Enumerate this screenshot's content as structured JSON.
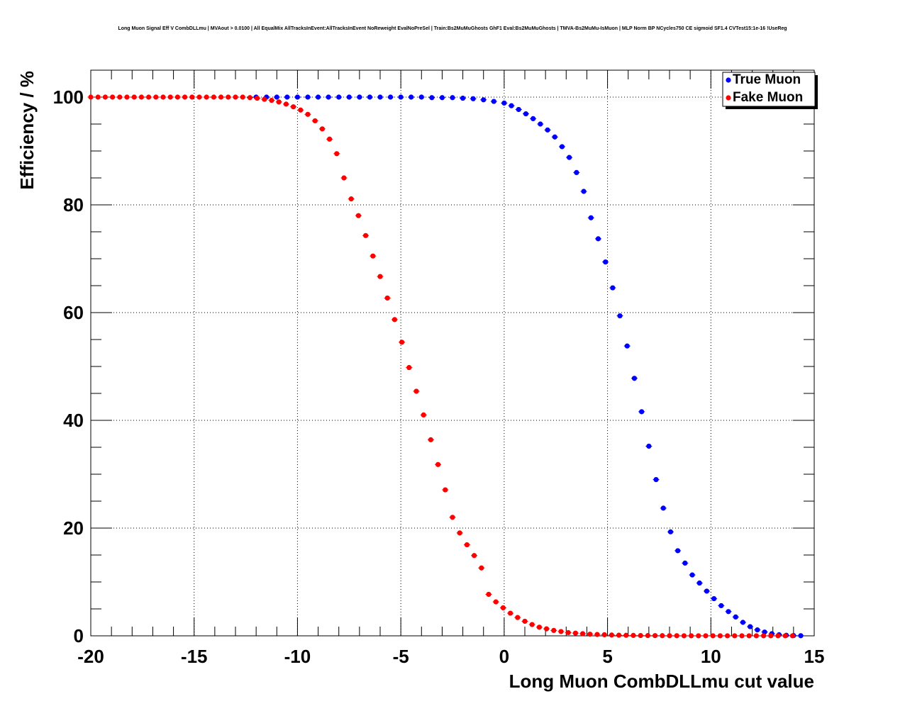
{
  "chart_data": {
    "type": "scatter",
    "title": "Long Muon Signal Eff V CombDLLmu | MVAout > 0.0100 | All EqualMix AllTracksInEvent:AllTracksInEvent NoReweight EvalNoPreSel | Train:Bs2MuMuGhosts GhF1 Eval:Bs2MuMuGhosts | TMVA-Bs2MuMu-IsMuon | MLP Norm BP NCycles750 CE sigmoid SF1.4 CVTest15:1e-16 !UseReg",
    "xlabel": "Long Muon CombDLLmu cut value",
    "ylabel": "Efficiency / %",
    "xlim": [
      -20,
      15
    ],
    "ylim": [
      0,
      105
    ],
    "x_ticks": [
      "-20",
      "-15",
      "-10",
      "-5",
      "0",
      "5",
      "10",
      "15"
    ],
    "y_ticks": [
      "0",
      "20",
      "40",
      "60",
      "80",
      "100"
    ],
    "grid": true,
    "legend_position": "top-right",
    "colors": {
      "True Muon": "#0000ff",
      "Fake Muon": "#ff0000"
    },
    "series": [
      {
        "name": "True Muon",
        "points": [
          [
            -12,
            100
          ],
          [
            -11.5,
            100
          ],
          [
            -11,
            100
          ],
          [
            -10.5,
            100
          ],
          [
            -10,
            100
          ],
          [
            -9.5,
            100
          ],
          [
            -9,
            100
          ],
          [
            -8.5,
            100
          ],
          [
            -8,
            100
          ],
          [
            -7.5,
            100
          ],
          [
            -7,
            100
          ],
          [
            -6.5,
            100
          ],
          [
            -6,
            100
          ],
          [
            -5.5,
            100
          ],
          [
            -5,
            100
          ],
          [
            -4.5,
            100
          ],
          [
            -4,
            100
          ],
          [
            -3.5,
            99.9
          ],
          [
            -3,
            99.9
          ],
          [
            -2.5,
            99.9
          ],
          [
            -2,
            99.8
          ],
          [
            -1.5,
            99.7
          ],
          [
            -1,
            99.5
          ],
          [
            -0.5,
            99.2
          ],
          [
            0,
            98.9
          ],
          [
            0.35,
            98.4
          ],
          [
            0.7,
            97.7
          ],
          [
            1.05,
            96.9
          ],
          [
            1.4,
            96.0
          ],
          [
            1.75,
            95.0
          ],
          [
            2.1,
            93.9
          ],
          [
            2.45,
            92.6
          ],
          [
            2.8,
            90.8
          ],
          [
            3.15,
            88.8
          ],
          [
            3.5,
            86.0
          ],
          [
            3.85,
            82.5
          ],
          [
            4.2,
            77.6
          ],
          [
            4.55,
            73.7
          ],
          [
            4.9,
            69.4
          ],
          [
            5.25,
            64.6
          ],
          [
            5.6,
            59.4
          ],
          [
            5.95,
            53.8
          ],
          [
            6.3,
            47.8
          ],
          [
            6.65,
            41.6
          ],
          [
            7.0,
            35.2
          ],
          [
            7.35,
            29.0
          ],
          [
            7.7,
            23.7
          ],
          [
            8.05,
            19.3
          ],
          [
            8.4,
            15.8
          ],
          [
            8.75,
            13.5
          ],
          [
            9.1,
            11.3
          ],
          [
            9.45,
            9.8
          ],
          [
            9.8,
            8.3
          ],
          [
            10.15,
            6.9
          ],
          [
            10.5,
            5.6
          ],
          [
            10.85,
            4.5
          ],
          [
            11.2,
            3.5
          ],
          [
            11.55,
            2.5
          ],
          [
            11.9,
            1.7
          ],
          [
            12.25,
            1.1
          ],
          [
            12.6,
            0.7
          ],
          [
            12.95,
            0.4
          ],
          [
            13.3,
            0.2
          ],
          [
            13.65,
            0.1
          ],
          [
            14.0,
            0.05
          ],
          [
            14.35,
            0.02
          ]
        ]
      },
      {
        "name": "Fake Muon",
        "points": [
          [
            -20,
            100
          ],
          [
            -19.65,
            100
          ],
          [
            -19.3,
            100
          ],
          [
            -18.95,
            100
          ],
          [
            -18.6,
            100
          ],
          [
            -18.25,
            100
          ],
          [
            -17.9,
            100
          ],
          [
            -17.55,
            100
          ],
          [
            -17.2,
            100
          ],
          [
            -16.85,
            100
          ],
          [
            -16.5,
            100
          ],
          [
            -16.15,
            100
          ],
          [
            -15.8,
            100
          ],
          [
            -15.45,
            100
          ],
          [
            -15.1,
            100
          ],
          [
            -14.75,
            100
          ],
          [
            -14.4,
            100
          ],
          [
            -14.05,
            100
          ],
          [
            -13.7,
            100
          ],
          [
            -13.35,
            100
          ],
          [
            -13.0,
            100
          ],
          [
            -12.65,
            100
          ],
          [
            -12.3,
            99.9
          ],
          [
            -11.95,
            99.8
          ],
          [
            -11.6,
            99.6
          ],
          [
            -11.25,
            99.4
          ],
          [
            -10.9,
            99.1
          ],
          [
            -10.55,
            98.7
          ],
          [
            -10.2,
            98.2
          ],
          [
            -9.85,
            97.6
          ],
          [
            -9.5,
            96.8
          ],
          [
            -9.15,
            95.6
          ],
          [
            -8.8,
            94.1
          ],
          [
            -8.45,
            92.2
          ],
          [
            -8.1,
            89.5
          ],
          [
            -7.75,
            85.0
          ],
          [
            -7.4,
            81.1
          ],
          [
            -7.05,
            78.0
          ],
          [
            -6.7,
            74.3
          ],
          [
            -6.35,
            70.5
          ],
          [
            -6.0,
            66.7
          ],
          [
            -5.65,
            62.7
          ],
          [
            -5.3,
            58.7
          ],
          [
            -4.95,
            54.5
          ],
          [
            -4.6,
            49.8
          ],
          [
            -4.25,
            45.4
          ],
          [
            -3.9,
            41.0
          ],
          [
            -3.55,
            36.4
          ],
          [
            -3.2,
            31.8
          ],
          [
            -2.85,
            27.1
          ],
          [
            -2.5,
            22.0
          ],
          [
            -2.15,
            19.1
          ],
          [
            -1.8,
            16.9
          ],
          [
            -1.45,
            14.9
          ],
          [
            -1.1,
            12.6
          ],
          [
            -0.75,
            7.7
          ],
          [
            -0.4,
            6.3
          ],
          [
            -0.05,
            5.2
          ],
          [
            0.3,
            4.2
          ],
          [
            0.65,
            3.4
          ],
          [
            1.0,
            2.7
          ],
          [
            1.35,
            2.1
          ],
          [
            1.7,
            1.6
          ],
          [
            2.05,
            1.3
          ],
          [
            2.4,
            1.0
          ],
          [
            2.75,
            0.8
          ],
          [
            3.1,
            0.6
          ],
          [
            3.45,
            0.5
          ],
          [
            3.8,
            0.4
          ],
          [
            4.15,
            0.3
          ],
          [
            4.5,
            0.25
          ],
          [
            4.85,
            0.2
          ],
          [
            5.2,
            0.15
          ],
          [
            5.55,
            0.12
          ],
          [
            5.9,
            0.1
          ],
          [
            6.25,
            0.08
          ],
          [
            6.6,
            0.06
          ],
          [
            6.95,
            0.05
          ],
          [
            7.3,
            0.04
          ],
          [
            7.65,
            0.03
          ],
          [
            8.0,
            0.02
          ],
          [
            8.35,
            0.02
          ],
          [
            8.7,
            0.01
          ],
          [
            9.05,
            0.01
          ],
          [
            9.4,
            0.01
          ],
          [
            9.75,
            0.01
          ],
          [
            10.1,
            0.01
          ],
          [
            10.45,
            0.01
          ],
          [
            10.8,
            0.01
          ],
          [
            11.15,
            0.01
          ],
          [
            11.5,
            0.01
          ],
          [
            11.85,
            0.01
          ],
          [
            12.2,
            0.01
          ],
          [
            12.55,
            0.01
          ],
          [
            12.9,
            0.01
          ],
          [
            13.25,
            0.01
          ],
          [
            13.6,
            0.01
          ],
          [
            13.95,
            0.01
          ]
        ]
      }
    ]
  }
}
